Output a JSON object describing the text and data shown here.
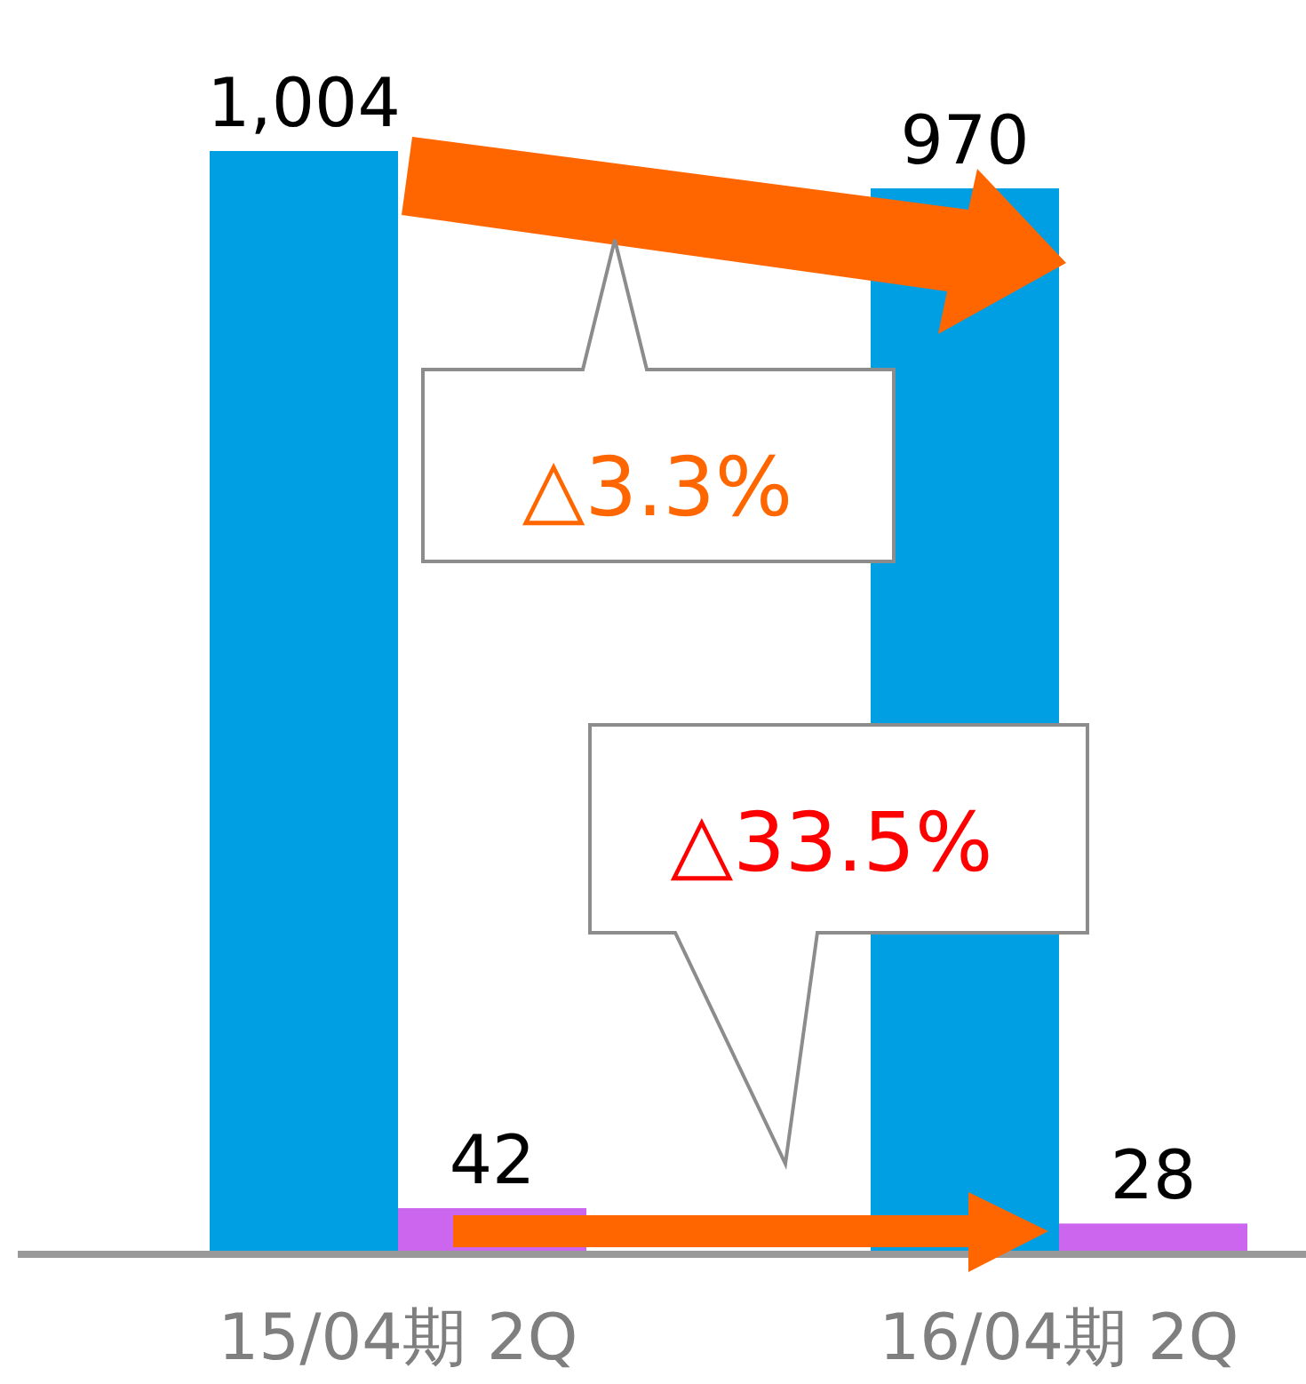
{
  "chart_data": {
    "type": "bar",
    "categories": [
      "15/04期 2Q",
      "16/04期 2Q"
    ],
    "series": [
      {
        "color": "#009fe3",
        "values": [
          1004,
          970
        ],
        "value_labels": [
          "1,004",
          "970"
        ]
      },
      {
        "color": "#cc66ee",
        "values": [
          42,
          28
        ],
        "value_labels": [
          "42",
          "28"
        ]
      }
    ],
    "annotations": [
      "△3.3%",
      "△33.5%"
    ]
  }
}
